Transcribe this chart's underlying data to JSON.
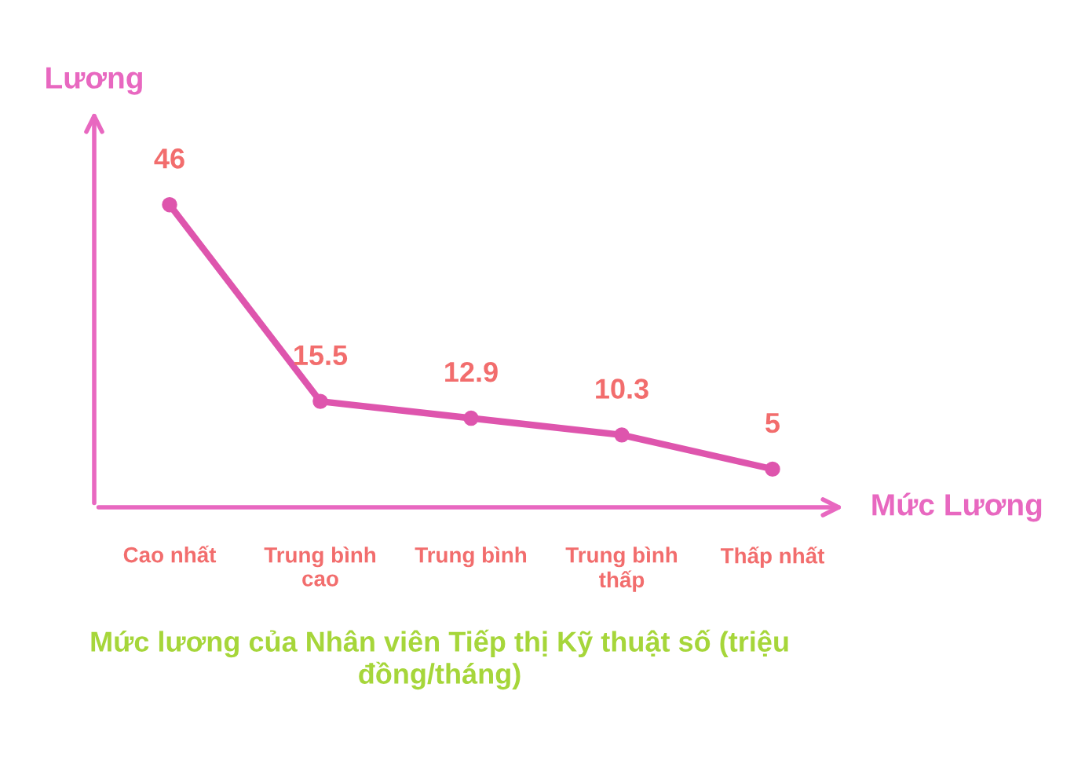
{
  "chart_data": {
    "type": "line",
    "title": "Mức lương của Nhân viên Tiếp thị Kỹ thuật số (triệu đồng/tháng)",
    "xlabel": "Mức Lương",
    "ylabel": "Lương",
    "categories": [
      "Cao nhất",
      "Trung bình\ncao",
      "Trung bình",
      "Trung bình\nthấp",
      "Thấp nhất"
    ],
    "series": [
      {
        "color": "#de55ad",
        "values": [
          46,
          15.5,
          12.9,
          10.3,
          5
        ]
      }
    ],
    "data_labels": true,
    "marker": "circle",
    "line_style": "solid",
    "grid": false,
    "legend": false
  }
}
